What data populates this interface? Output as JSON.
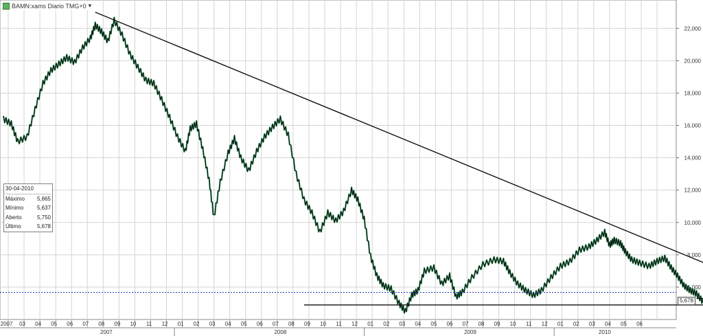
{
  "title_bar": {
    "symbol": "BAMN:xams Diario TMG+0",
    "menu_glyph": "▾",
    "icon": "chart-icon"
  },
  "info_box": {
    "date": "30-04-2010",
    "rows": [
      {
        "label": "Máximo",
        "value": "5,865"
      },
      {
        "label": "Mínimo",
        "value": "5,637"
      },
      {
        "label": "Aberto",
        "value": "5,750"
      },
      {
        "label": "Último",
        "value": "5,678"
      }
    ]
  },
  "last_value_tag": "5,678",
  "colors": {
    "up_candle": "#2f9e5f",
    "down_candle": "#111111",
    "grid": "#d4d4d4",
    "trendline": "#111111",
    "last_price_line": "#1f2fbf"
  },
  "chart_data": {
    "type": "line",
    "subtype": "daily candlestick (rendered as price path)",
    "y_axis": {
      "side": "right",
      "min": 4000,
      "max": 23500,
      "ticks": [
        6000,
        8000,
        10000,
        12000,
        14000,
        16000,
        18000,
        20000,
        22000
      ],
      "tick_labels": [
        "6,000",
        "8,000",
        "10,000",
        "12,000",
        "14,000",
        "16,000",
        "18,000",
        "20,000",
        "22,000"
      ]
    },
    "x_axis": {
      "start": "2007-01",
      "end": "2010-06",
      "month_labels": [
        "2007",
        "03",
        "04",
        "05",
        "06",
        "07",
        "08",
        "09",
        "10",
        "11",
        "12",
        "01",
        "02",
        "03",
        "04",
        "05",
        "06",
        "07",
        "08",
        "09",
        "10",
        "11",
        "12",
        "01",
        "02",
        "03",
        "04",
        "05",
        "06",
        "07",
        "08",
        "09",
        "10",
        "11",
        "12",
        "01",
        "02",
        "03",
        "04",
        "05",
        "06"
      ],
      "year_labels": [
        {
          "label": "2007",
          "month": 6.5
        },
        {
          "label": "2008",
          "month": 17.5
        },
        {
          "label": "2009",
          "month": 29.5
        },
        {
          "label": "2010",
          "month": 38.0
        }
      ]
    },
    "grid": true,
    "price_series": {
      "name": "",
      "points": [
        [
          0.0,
          16400
        ],
        [
          0.5,
          16100
        ],
        [
          0.9,
          15000
        ],
        [
          1.5,
          15300
        ],
        [
          2.0,
          17000
        ],
        [
          2.5,
          18600
        ],
        [
          3.0,
          19400
        ],
        [
          3.5,
          19800
        ],
        [
          4.0,
          20200
        ],
        [
          4.5,
          19900
        ],
        [
          5.0,
          20800
        ],
        [
          5.5,
          21400
        ],
        [
          5.8,
          22200
        ],
        [
          6.2,
          21800
        ],
        [
          6.6,
          21200
        ],
        [
          7.0,
          22500
        ],
        [
          7.5,
          21600
        ],
        [
          8.0,
          20400
        ],
        [
          8.5,
          19600
        ],
        [
          9.0,
          18800
        ],
        [
          9.5,
          18600
        ],
        [
          10.0,
          17600
        ],
        [
          10.5,
          16500
        ],
        [
          11.0,
          15300
        ],
        [
          11.5,
          14400
        ],
        [
          11.8,
          15800
        ],
        [
          12.2,
          16100
        ],
        [
          12.6,
          14500
        ],
        [
          13.0,
          12600
        ],
        [
          13.3,
          10300
        ],
        [
          13.7,
          12500
        ],
        [
          14.2,
          14300
        ],
        [
          14.6,
          15200
        ],
        [
          15.0,
          14000
        ],
        [
          15.5,
          13200
        ],
        [
          16.0,
          14400
        ],
        [
          16.5,
          15300
        ],
        [
          17.0,
          15900
        ],
        [
          17.5,
          16400
        ],
        [
          18.0,
          15400
        ],
        [
          18.5,
          13000
        ],
        [
          19.0,
          11400
        ],
        [
          19.5,
          10600
        ],
        [
          20.0,
          9400
        ],
        [
          20.5,
          10600
        ],
        [
          21.0,
          10100
        ],
        [
          21.5,
          10700
        ],
        [
          22.0,
          12000
        ],
        [
          22.4,
          11400
        ],
        [
          22.8,
          10200
        ],
        [
          23.2,
          7900
        ],
        [
          23.6,
          6700
        ],
        [
          24.0,
          6100
        ],
        [
          24.5,
          5900
        ],
        [
          25.0,
          5000
        ],
        [
          25.4,
          4500
        ],
        [
          25.8,
          5500
        ],
        [
          26.2,
          5800
        ],
        [
          26.6,
          7000
        ],
        [
          27.2,
          7200
        ],
        [
          27.7,
          6200
        ],
        [
          28.2,
          6700
        ],
        [
          28.6,
          5400
        ],
        [
          29.0,
          5700
        ],
        [
          29.6,
          6600
        ],
        [
          30.3,
          7400
        ],
        [
          31.0,
          7700
        ],
        [
          31.6,
          7600
        ],
        [
          32.0,
          6900
        ],
        [
          32.5,
          6200
        ],
        [
          33.0,
          5800
        ],
        [
          33.5,
          5500
        ],
        [
          34.0,
          5800
        ],
        [
          34.6,
          6600
        ],
        [
          35.2,
          7300
        ],
        [
          35.8,
          7600
        ],
        [
          36.4,
          8300
        ],
        [
          37.0,
          8500
        ],
        [
          37.5,
          8900
        ],
        [
          38.0,
          9400
        ],
        [
          38.3,
          8600
        ],
        [
          38.6,
          8900
        ],
        [
          39.0,
          8700
        ],
        [
          39.3,
          8200
        ],
        [
          39.7,
          7700
        ],
        [
          40.2,
          7500
        ],
        [
          40.8,
          7300
        ],
        [
          41.3,
          7600
        ],
        [
          41.8,
          7800
        ],
        [
          42.2,
          7200
        ],
        [
          42.6,
          6700
        ],
        [
          43.0,
          6100
        ],
        [
          43.4,
          5800
        ],
        [
          43.8,
          5600
        ],
        [
          44.2,
          5100
        ],
        [
          44.7,
          5200
        ],
        [
          45.2,
          5700
        ],
        [
          45.6,
          6300
        ],
        [
          46.0,
          6500
        ],
        [
          46.3,
          6100
        ],
        [
          46.6,
          5700
        ]
      ]
    },
    "trendlines": [
      {
        "from": [
          5.8,
          23000
        ],
        "to": [
          50.0,
          5200
        ]
      },
      {
        "from": [
          19.0,
          4900
        ],
        "to": [
          49.5,
          4900
        ]
      },
      {
        "from": [
          43.8,
          5300
        ],
        "to": [
          45.8,
          5300
        ]
      }
    ],
    "last_price": 5678
  }
}
